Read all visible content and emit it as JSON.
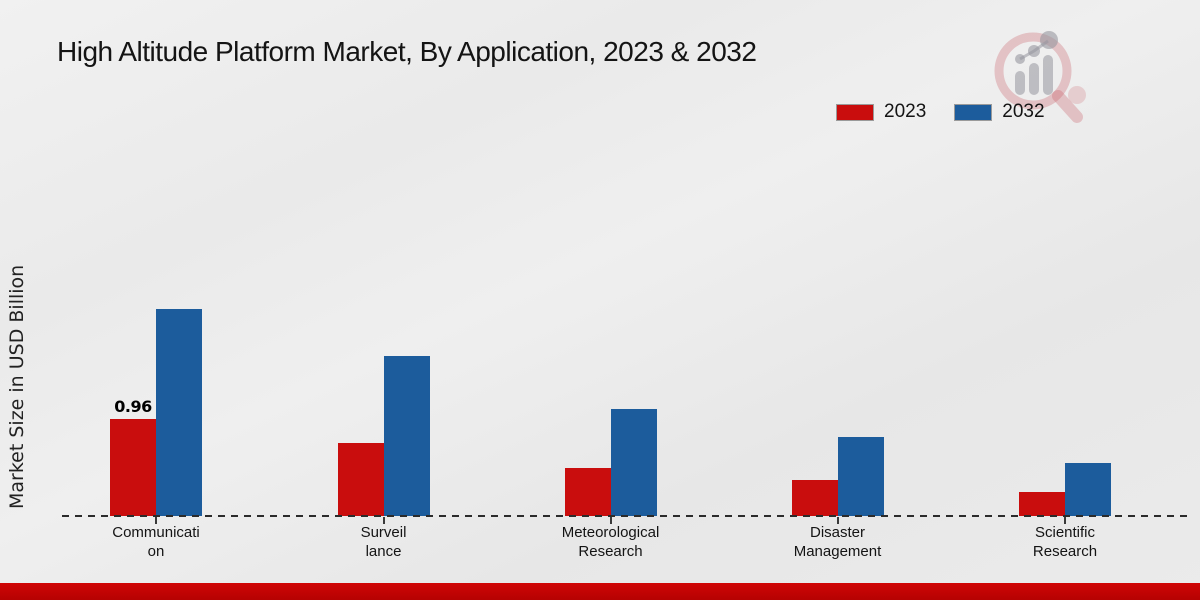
{
  "title": "High Altitude Platform Market, By Application, 2023 & 2032",
  "y_axis_label": "Market Size in USD Billion",
  "legend": {
    "items": [
      {
        "label": "2023",
        "color": "#C90D0D"
      },
      {
        "label": "2032",
        "color": "#1C5C9C"
      }
    ]
  },
  "watermark_icon": "magnifier-growth-chart-logo",
  "colors": {
    "series_2023": "#C90D0D",
    "series_2032": "#1C5C9C",
    "footer_bar": "#C40404",
    "background": "#EAEAEA",
    "baseline": "#2B2B2B",
    "text": "#141414"
  },
  "chart_data": {
    "type": "bar",
    "title": "High Altitude Platform Market, By Application, 2023 & 2032",
    "ylabel": "Market Size in USD Billion",
    "xlabel": "",
    "categories": [
      "Communication",
      "Surveillance",
      "Meteorological Research",
      "Disaster Management",
      "Scientific Research"
    ],
    "category_label_lines": [
      [
        "Communicati",
        "on"
      ],
      [
        "Surveil",
        "lance"
      ],
      [
        "Meteorological",
        "Research"
      ],
      [
        "Disaster",
        "Management"
      ],
      [
        "Scientific",
        "Research"
      ]
    ],
    "series": [
      {
        "name": "2023",
        "color": "#C90D0D",
        "values": [
          0.96,
          0.72,
          0.48,
          0.36,
          0.24
        ]
      },
      {
        "name": "2032",
        "color": "#1C5C9C",
        "values": [
          2.05,
          1.58,
          1.06,
          0.78,
          0.52
        ]
      }
    ],
    "data_labels": [
      {
        "series": "2023",
        "category": "Communication",
        "text": "0.96"
      }
    ],
    "ylim": [
      0,
      2.4
    ],
    "grid": false,
    "legend_position": "top-right",
    "baseline_style": "dashed"
  }
}
